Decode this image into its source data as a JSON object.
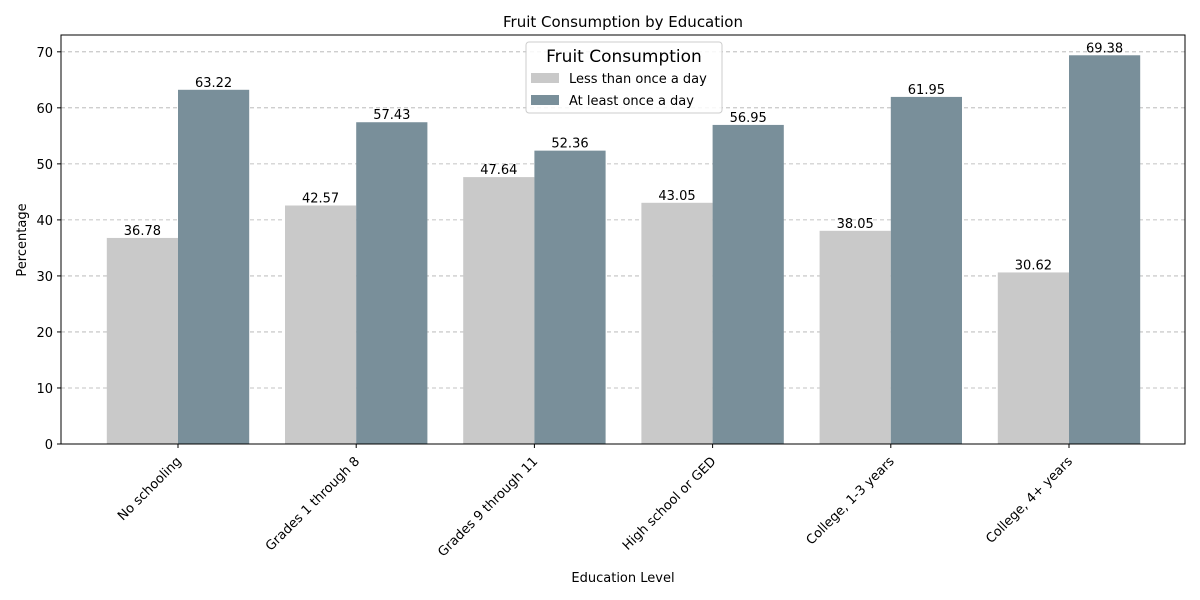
{
  "chart_data": {
    "type": "bar",
    "title": "Fruit Consumption by Education",
    "xlabel": "Education Level",
    "ylabel": "Percentage",
    "categories": [
      "No schooling",
      "Grades 1 through 8",
      "Grades 9 through 11",
      "High school or GED",
      "College, 1-3 years",
      "College, 4+ years"
    ],
    "series": [
      {
        "name": "Less than once a day",
        "color": "#c9c9c9",
        "values": [
          36.78,
          42.57,
          47.64,
          43.05,
          38.05,
          30.62
        ]
      },
      {
        "name": "At least once a day",
        "color": "#798f9a",
        "values": [
          63.22,
          57.43,
          52.36,
          56.95,
          61.95,
          69.38
        ]
      }
    ],
    "ylim": [
      0,
      73
    ],
    "yticks": [
      0,
      10,
      20,
      30,
      40,
      50,
      60,
      70
    ],
    "grid": true,
    "legend": {
      "title": "Fruit Consumption",
      "position": "top-center"
    }
  }
}
